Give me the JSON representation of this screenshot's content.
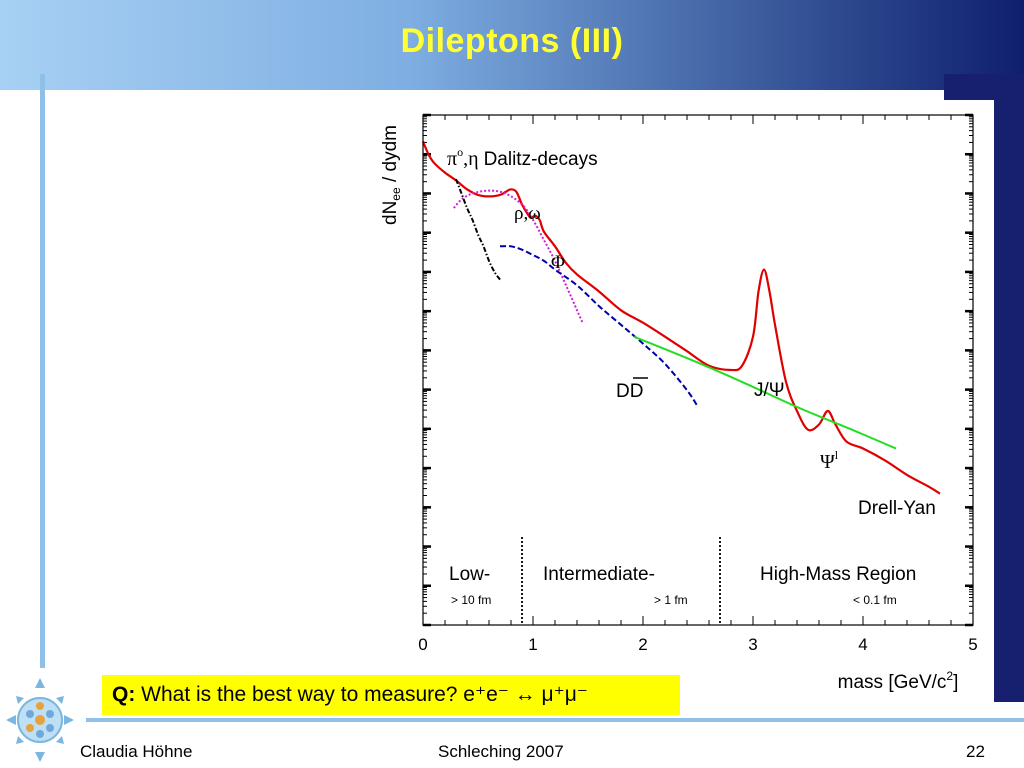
{
  "slide": {
    "title": "Dileptons (III)",
    "question_prefix": "Q:",
    "question_text": " What is the best way to measure? e⁺e⁻ ↔ μ⁺μ⁻",
    "footer_left": "Claudia Höhne",
    "footer_center": "Schleching 2007",
    "page_number": "22"
  },
  "colors": {
    "title": "#ffff33",
    "total_curve": "#e00000",
    "dalitz": "#000000",
    "rho_omega": "#cc22cc",
    "charm": "#0000aa",
    "drell_yan": "#22dd22",
    "question_bg": "#ffff00"
  },
  "chart_data": {
    "type": "line",
    "xlabel": "mass [GeV/c²]",
    "ylabel": "dNee / dydm",
    "xlim": [
      0,
      5
    ],
    "x_ticks": [
      "0",
      "1",
      "2",
      "3",
      "4",
      "5"
    ],
    "log_y": true,
    "series": [
      {
        "name": "total",
        "style": "solid",
        "color": "#e00000",
        "x": [
          0.0,
          0.05,
          0.1,
          0.2,
          0.3,
          0.4,
          0.5,
          0.6,
          0.7,
          0.75,
          0.8,
          0.85,
          0.9,
          0.95,
          0.98,
          1.02,
          1.06,
          1.1,
          1.2,
          1.3,
          1.4,
          1.6,
          1.8,
          2.0,
          2.2,
          2.4,
          2.6,
          2.8,
          2.9,
          3.0,
          3.05,
          3.1,
          3.15,
          3.2,
          3.3,
          3.4,
          3.5,
          3.6,
          3.68,
          3.75,
          3.85,
          4.0,
          4.2,
          4.4,
          4.6,
          4.7
        ],
        "y": [
          1.0,
          0.82,
          0.72,
          0.62,
          0.55,
          0.48,
          0.44,
          0.43,
          0.44,
          0.46,
          0.48,
          0.46,
          0.38,
          0.33,
          0.31,
          0.32,
          0.3,
          0.25,
          0.2,
          0.155,
          0.13,
          0.1,
          0.075,
          0.062,
          0.05,
          0.04,
          0.032,
          0.03,
          0.032,
          0.05,
          0.1,
          0.14,
          0.1,
          0.06,
          0.025,
          0.016,
          0.012,
          0.013,
          0.016,
          0.013,
          0.01,
          0.009,
          0.0075,
          0.006,
          0.005,
          0.0045
        ]
      },
      {
        "name": "dalitz",
        "style": "dashdot",
        "color": "#000000",
        "x": [
          0.3,
          0.35,
          0.4,
          0.45,
          0.5,
          0.55,
          0.6,
          0.65,
          0.7
        ],
        "y": [
          0.56,
          0.45,
          0.36,
          0.3,
          0.24,
          0.2,
          0.16,
          0.135,
          0.12
        ]
      },
      {
        "name": "rho-omega",
        "style": "dotted",
        "color": "#cc22cc",
        "x": [
          0.28,
          0.35,
          0.45,
          0.6,
          0.75,
          0.9,
          1.0,
          1.1,
          1.2,
          1.3,
          1.4,
          1.45
        ],
        "y": [
          0.36,
          0.41,
          0.45,
          0.47,
          0.45,
          0.38,
          0.3,
          0.22,
          0.16,
          0.11,
          0.075,
          0.062
        ]
      },
      {
        "name": "charm",
        "style": "dashed",
        "color": "#0000aa",
        "x": [
          0.7,
          0.8,
          0.9,
          1.0,
          1.1,
          1.2,
          1.4,
          1.6,
          1.8,
          2.0,
          2.2,
          2.4,
          2.5
        ],
        "y": [
          0.2,
          0.2,
          0.19,
          0.175,
          0.16,
          0.14,
          0.11,
          0.08,
          0.06,
          0.045,
          0.033,
          0.022,
          0.017
        ]
      },
      {
        "name": "drell-yan",
        "style": "solid",
        "color": "#22dd22",
        "x": [
          1.92,
          2.4,
          2.9,
          3.4,
          3.9,
          4.3
        ],
        "y": [
          0.05,
          0.036,
          0.025,
          0.017,
          0.012,
          0.009
        ]
      }
    ],
    "annotations": [
      {
        "text": "π⁰,η Dalitz-decays"
      },
      {
        "text": "ρ,ω"
      },
      {
        "text": "Φ"
      },
      {
        "text": "DD̄"
      },
      {
        "text": "J/Ψ"
      },
      {
        "text": "Ψ'"
      },
      {
        "text": "Drell-Yan"
      }
    ],
    "regions": [
      {
        "label": "Low-",
        "sublabel": "> 10 fm"
      },
      {
        "label": "Intermediate-",
        "sublabel": "> 1 fm"
      },
      {
        "label": "High-Mass Region",
        "sublabel": "< 0.1 fm"
      }
    ],
    "region_boundaries": [
      0.9,
      2.7
    ]
  }
}
